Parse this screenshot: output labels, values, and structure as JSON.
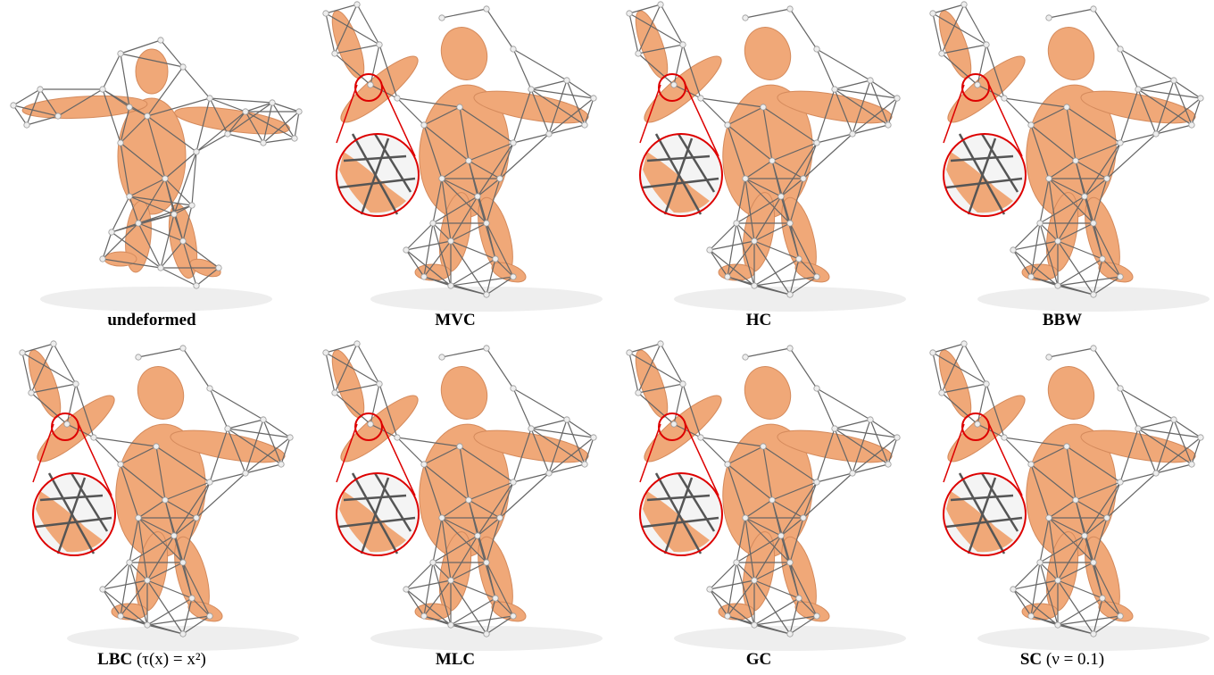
{
  "panels": [
    {
      "name": "undeformed"
    },
    {
      "name": "MVC"
    },
    {
      "name": "HC"
    },
    {
      "name": "BBW"
    },
    {
      "name": "LBC",
      "params": "(τ(x) = x²)"
    },
    {
      "name": "MLC"
    },
    {
      "name": "GC"
    },
    {
      "name": "SC",
      "params": "(ν = 0.1)"
    }
  ]
}
